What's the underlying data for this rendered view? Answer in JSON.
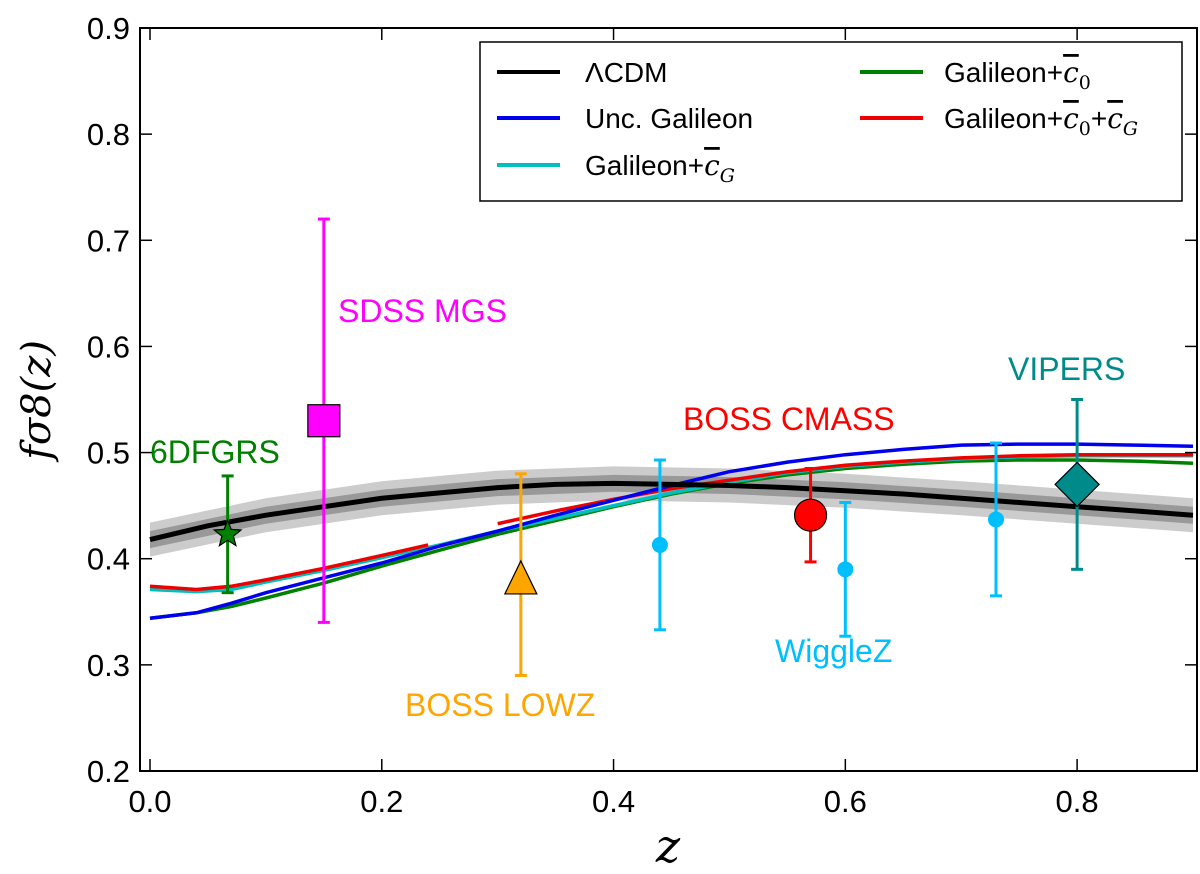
{
  "chart_data": {
    "type": "line",
    "xlabel": "z",
    "ylabel": "fσ8(z)",
    "xlim": [
      0.0,
      0.9
    ],
    "ylim": [
      0.2,
      0.9
    ],
    "x_ticks": [
      0.0,
      0.2,
      0.4,
      0.6,
      0.8
    ],
    "x_tick_labels": [
      "0.0",
      "0.2",
      "0.4",
      "0.6",
      "0.8"
    ],
    "y_ticks": [
      0.2,
      0.3,
      0.4,
      0.5,
      0.6,
      0.7,
      0.8,
      0.9
    ],
    "y_tick_labels": [
      "0.2",
      "0.3",
      "0.4",
      "0.5",
      "0.6",
      "0.7",
      "0.8",
      "0.9"
    ],
    "legend_position": "top-right",
    "lcdm_band": {
      "x": [
        0.0,
        0.1,
        0.2,
        0.3,
        0.4,
        0.5,
        0.6,
        0.7,
        0.8,
        0.9
      ],
      "y": [
        0.418,
        0.441,
        0.457,
        0.467,
        0.471,
        0.469,
        0.464,
        0.457,
        0.449,
        0.441
      ],
      "inner_halfwidth": 0.008,
      "outer_halfwidth": 0.016,
      "inner_color": "#999999",
      "outer_color": "#cccccc"
    },
    "series": [
      {
        "name": "ΛCDM",
        "legend_text": "ΛCDM",
        "color": "#000000",
        "x": [
          0.0,
          0.05,
          0.1,
          0.15,
          0.2,
          0.25,
          0.3,
          0.35,
          0.4,
          0.45,
          0.5,
          0.55,
          0.6,
          0.65,
          0.7,
          0.75,
          0.8,
          0.85,
          0.9
        ],
        "y": [
          0.418,
          0.431,
          0.441,
          0.449,
          0.457,
          0.462,
          0.467,
          0.47,
          0.471,
          0.47,
          0.469,
          0.467,
          0.464,
          0.461,
          0.457,
          0.453,
          0.449,
          0.445,
          0.441
        ]
      },
      {
        "name": "Unc. Galileon",
        "legend_text": "Unc. Galileon",
        "color": "#0000ee",
        "x": [
          0.0,
          0.04,
          0.07,
          0.1,
          0.15,
          0.2,
          0.25,
          0.3,
          0.35,
          0.4,
          0.45,
          0.5,
          0.55,
          0.6,
          0.65,
          0.7,
          0.75,
          0.8,
          0.85,
          0.9
        ],
        "y": [
          0.344,
          0.349,
          0.358,
          0.368,
          0.382,
          0.396,
          0.412,
          0.426,
          0.441,
          0.455,
          0.469,
          0.482,
          0.491,
          0.498,
          0.503,
          0.507,
          0.508,
          0.508,
          0.507,
          0.506
        ]
      },
      {
        "name": "Galileon+c̄G",
        "legend_text": "Galileon+",
        "legend_symbol": "c",
        "legend_subscript": "G",
        "color": "#00bfbf",
        "x": [
          0.0,
          0.04,
          0.07,
          0.1,
          0.15,
          0.2,
          0.25,
          0.3,
          0.35,
          0.4,
          0.45,
          0.5,
          0.55,
          0.6,
          0.65,
          0.7,
          0.75,
          0.8,
          0.85,
          0.9
        ],
        "y": [
          0.371,
          0.369,
          0.371,
          0.378,
          0.389,
          0.401,
          0.413,
          0.426,
          0.438,
          0.45,
          0.462,
          0.472,
          0.481,
          0.487,
          0.491,
          0.494,
          0.496,
          0.497,
          0.497,
          0.497
        ]
      },
      {
        "name": "Galileon+c̄0",
        "legend_text": "Galileon+",
        "legend_symbol": "c",
        "legend_subscript": "0",
        "color": "#008000",
        "x": [
          0.0,
          0.04,
          0.07,
          0.1,
          0.15,
          0.2,
          0.25,
          0.3,
          0.35,
          0.4,
          0.45,
          0.5,
          0.55,
          0.6,
          0.65,
          0.7,
          0.75,
          0.8,
          0.85,
          0.9
        ],
        "y": [
          0.344,
          0.349,
          0.355,
          0.363,
          0.377,
          0.393,
          0.408,
          0.423,
          0.436,
          0.449,
          0.461,
          0.471,
          0.479,
          0.485,
          0.489,
          0.492,
          0.493,
          0.493,
          0.492,
          0.49
        ]
      },
      {
        "name": "Galileon+c̄0+c̄G",
        "legend_text": "Galileon+",
        "legend_symbol": "c",
        "legend_subscript": "0",
        "legend_text2": "+",
        "legend_symbol2": "c",
        "legend_subscript2": "G",
        "color": "#ee0000",
        "x": [
          0.0,
          0.04,
          0.07,
          0.1,
          0.15,
          0.2,
          0.24
        ],
        "y": [
          0.374,
          0.371,
          0.374,
          0.38,
          0.391,
          0.403,
          0.413
        ],
        "x2": [
          0.3,
          0.35,
          0.4,
          0.45,
          0.5,
          0.55,
          0.6,
          0.65,
          0.7,
          0.75,
          0.8,
          0.85,
          0.9
        ],
        "y2": [
          0.433,
          0.445,
          0.456,
          0.466,
          0.474,
          0.482,
          0.488,
          0.492,
          0.495,
          0.497,
          0.498,
          0.498,
          0.498
        ]
      }
    ],
    "measurements": [
      {
        "name": "6DFGRS",
        "label": "6DFGRS",
        "x": 0.067,
        "y": 0.423,
        "err_low": 0.368,
        "err_high": 0.478,
        "marker": "star",
        "color": "#008000"
      },
      {
        "name": "SDSS MGS",
        "label": "SDSS MGS",
        "x": 0.15,
        "y": 0.53,
        "err_low": 0.34,
        "err_high": 0.72,
        "marker": "square",
        "color": "#ff00ff"
      },
      {
        "name": "BOSS LOWZ",
        "label": "BOSS LOWZ",
        "x": 0.32,
        "y": 0.38,
        "err_low": 0.29,
        "err_high": 0.48,
        "marker": "triangle",
        "color": "#ffa500"
      },
      {
        "name": "BOSS CMASS",
        "label": "BOSS CMASS",
        "x": 0.57,
        "y": 0.441,
        "err_low": 0.397,
        "err_high": 0.485,
        "marker": "circle",
        "color": "#ff0000"
      },
      {
        "name": "WiggleZ z=0.44",
        "x": 0.44,
        "y": 0.413,
        "err_low": 0.333,
        "err_high": 0.493,
        "marker": "dot",
        "color": "#00bfff"
      },
      {
        "name": "WiggleZ z=0.60",
        "label": "WiggleZ",
        "x": 0.6,
        "y": 0.39,
        "err_low": 0.327,
        "err_high": 0.453,
        "marker": "dot",
        "color": "#00bfff"
      },
      {
        "name": "WiggleZ z=0.73",
        "x": 0.73,
        "y": 0.437,
        "err_low": 0.365,
        "err_high": 0.509,
        "marker": "dot",
        "color": "#00bfff"
      },
      {
        "name": "VIPERS",
        "label": "VIPERS",
        "x": 0.8,
        "y": 0.47,
        "err_low": 0.39,
        "err_high": 0.55,
        "marker": "diamond",
        "color": "#008b8b"
      }
    ]
  }
}
